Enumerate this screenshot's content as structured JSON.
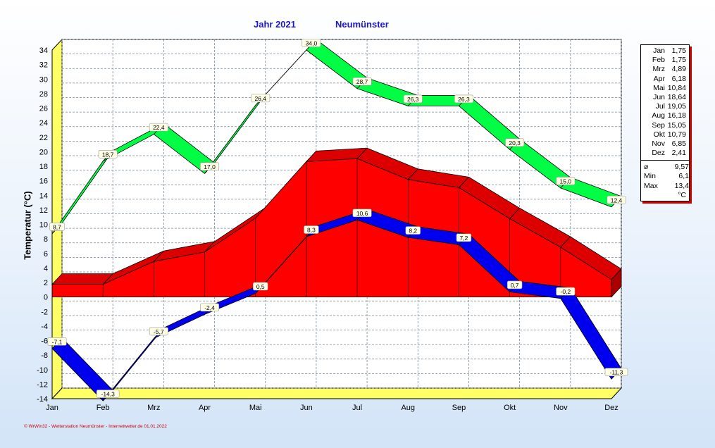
{
  "title": {
    "year": "Jahr  2021",
    "station": "Neumünster"
  },
  "footer": "© WrWin32 - Wetterstation Neumünster - Internetwetter.de  01.01.2022",
  "colors": {
    "max": "#00ff44",
    "min": "#0000ee",
    "mean": "#ff0000",
    "plot_bg": "#ffffff",
    "grid": "#7a8a99",
    "floor": "#ffff66"
  },
  "chart_data": {
    "type": "area",
    "ylabel": "Temperatur  (°C)",
    "ylim": [
      -14,
      34
    ],
    "yticks": [
      "-14",
      "-12",
      "-10",
      "-8",
      "-6",
      "-4",
      "-2",
      "0",
      "2",
      "4",
      "6",
      "8",
      "10",
      "12",
      "14",
      "16",
      "18",
      "20",
      "22",
      "24",
      "26",
      "28",
      "30",
      "32",
      "34"
    ],
    "categories": [
      "Jan",
      "Feb",
      "Mrz",
      "Apr",
      "Mai",
      "Jun",
      "Jul",
      "Aug",
      "Sep",
      "Okt",
      "Nov",
      "Dez"
    ],
    "grid": true,
    "series": [
      {
        "values": [
          8.7,
          18.7,
          22.4,
          17.0,
          26.4,
          34.0,
          28.7,
          26.3,
          26.3,
          20.3,
          15.0,
          12.4
        ],
        "labels": [
          "8,7",
          "18,7",
          "22,4",
          "17,0",
          "26,4",
          "34,0",
          "28,7",
          "26,3",
          "26,3",
          "20,3",
          "15,0",
          "12,4"
        ]
      },
      {
        "values": [
          1.75,
          1.75,
          4.89,
          6.18,
          10.84,
          18.64,
          19.05,
          16.18,
          15.05,
          10.79,
          6.85,
          2.41
        ]
      },
      {
        "values": [
          -7.1,
          -14.3,
          -5.7,
          -2.4,
          0.5,
          8.3,
          10.6,
          8.2,
          7.2,
          0.7,
          -0.2,
          -11.3
        ],
        "labels": [
          "-7,1",
          "-14,3",
          "-5,7",
          "-2,4",
          "0,5",
          "8,3",
          "10,6",
          "8,2",
          "7,2",
          "0,7",
          "-0,2",
          "-11,3"
        ]
      }
    ]
  },
  "table": {
    "months": [
      {
        "m": "Jan",
        "v": "1,75"
      },
      {
        "m": "Feb",
        "v": "1,75"
      },
      {
        "m": "Mrz",
        "v": "4,89"
      },
      {
        "m": "Apr",
        "v": "6,18"
      },
      {
        "m": "Mai",
        "v": "10,84"
      },
      {
        "m": "Jun",
        "v": "18,64"
      },
      {
        "m": "Jul",
        "v": "19,05"
      },
      {
        "m": "Aug",
        "v": "16,18"
      },
      {
        "m": "Sep",
        "v": "15,05"
      },
      {
        "m": "Okt",
        "v": "10,79"
      },
      {
        "m": "Nov",
        "v": "6,85"
      },
      {
        "m": "Dez",
        "v": "2,41"
      }
    ],
    "mean_label": "ø",
    "mean": "9,57",
    "min_label": "Min",
    "min": "6,1",
    "max_label": "Max",
    "max": "13,4",
    "unit": "°C"
  }
}
